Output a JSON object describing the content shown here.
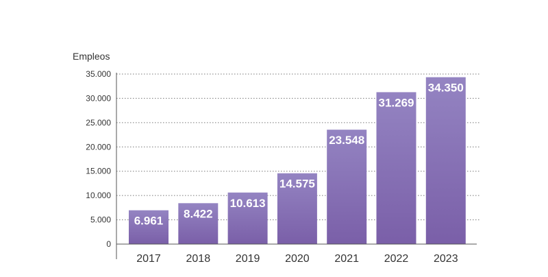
{
  "chart_data": {
    "type": "bar",
    "title": "",
    "ylabel": "Empleos",
    "xlabel": "",
    "categories": [
      "2017",
      "2018",
      "2019",
      "2020",
      "2021",
      "2022",
      "2023"
    ],
    "values": [
      6961,
      8422,
      10613,
      14575,
      23548,
      31269,
      34350
    ],
    "value_labels": [
      "6.961",
      "8.422",
      "10.613",
      "14.575",
      "23.548",
      "31.269",
      "34.350"
    ],
    "ylim": [
      0,
      35000
    ],
    "yticks": [
      0,
      5000,
      10000,
      15000,
      20000,
      25000,
      30000,
      35000
    ],
    "ytick_labels": [
      "0",
      "5.000",
      "10.000",
      "15.000",
      "20.000",
      "25.000",
      "30.000",
      "35.000"
    ],
    "grid": "horizontal-dotted",
    "colors": {
      "bar_top": "#9484c2",
      "bar_bottom": "#7a5fa8",
      "grid": "#777777",
      "axis": "#555555",
      "text": "#333333",
      "label": "#ffffff"
    }
  }
}
